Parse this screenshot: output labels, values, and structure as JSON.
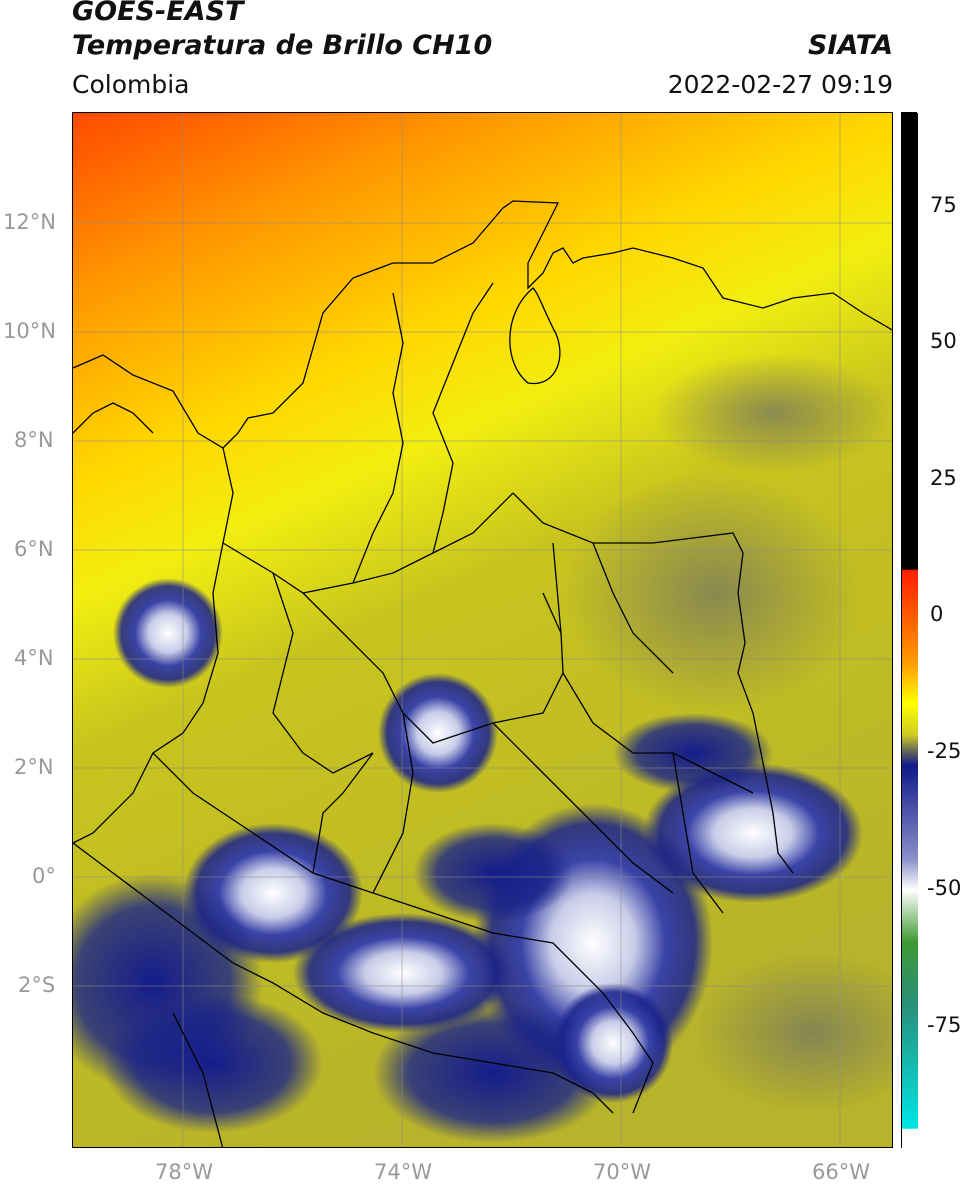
{
  "header": {
    "satellite": "GOES-EAST",
    "product": "Temperatura de Brillo CH10",
    "region": "Colombia",
    "agency": "SIATA",
    "datetime": "2022-02-27 09:19"
  },
  "map": {
    "lat_ticks": [
      "12°N",
      "10°N",
      "8°N",
      "6°N",
      "4°N",
      "2°N",
      "0°",
      "2°S"
    ],
    "lon_ticks": [
      "78°W",
      "74°W",
      "70°W",
      "66°W"
    ]
  },
  "colorbar": {
    "ticks": [
      "75",
      "50",
      "25",
      "0",
      "-25",
      "-50",
      "-75"
    ],
    "colors": {
      "warm": "#ff4a00",
      "orange": "#ff9a00",
      "yellow": "#ffff00",
      "olive": "#b9b624",
      "gray": "#6b6b55",
      "navy": "#101a8a",
      "white": "#ffffff",
      "green": "#2f8a2a",
      "cyan": "#00e5e5",
      "black": "#000000"
    }
  }
}
